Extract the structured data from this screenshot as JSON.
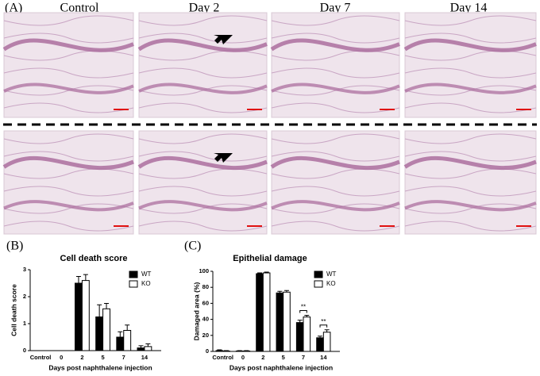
{
  "panel_labels": [
    "(A)",
    "(B)",
    "(C)"
  ],
  "column_labels": [
    "Control",
    "Day 2",
    "Day 7",
    "Day 14"
  ],
  "chart_data": [
    {
      "type": "bar",
      "title": "Cell death score",
      "ylabel": "Cell death score",
      "xlabel": "Days post naphthalene injection",
      "categories": [
        "Control",
        "0",
        "2",
        "5",
        "7",
        "14"
      ],
      "series": [
        {
          "name": "WT",
          "color": "#000000",
          "values": [
            0,
            0,
            2.5,
            1.25,
            0.5,
            0.1
          ],
          "errors": [
            0,
            0,
            0.25,
            0.45,
            0.2,
            0.08
          ]
        },
        {
          "name": "KO",
          "color": "#ffffff",
          "values": [
            0,
            0,
            2.6,
            1.55,
            0.75,
            0.15
          ],
          "errors": [
            0,
            0,
            0.22,
            0.2,
            0.2,
            0.1
          ]
        }
      ],
      "ylim": [
        0,
        3
      ],
      "yticks": [
        0,
        1,
        2,
        3
      ],
      "legend": "upper right"
    },
    {
      "type": "bar",
      "title": "Epithelial damage",
      "ylabel": "Damaged area (%)",
      "xlabel": "Days post naphthalene injection",
      "categories": [
        "Control",
        "0",
        "2",
        "5",
        "7",
        "14"
      ],
      "series": [
        {
          "name": "WT",
          "color": "#000000",
          "values": [
            1,
            0.5,
            97,
            73,
            36,
            17
          ],
          "errors": [
            1,
            0.5,
            1,
            2,
            3,
            2
          ]
        },
        {
          "name": "KO",
          "color": "#ffffff",
          "values": [
            0.5,
            0.5,
            98,
            74,
            43,
            24
          ],
          "errors": [
            0.5,
            0.5,
            1,
            2,
            2,
            3
          ]
        }
      ],
      "ylim": [
        0,
        100
      ],
      "yticks": [
        0,
        20,
        40,
        60,
        80,
        100
      ],
      "legend": "upper right",
      "annotations": [
        "**",
        "**"
      ]
    }
  ]
}
